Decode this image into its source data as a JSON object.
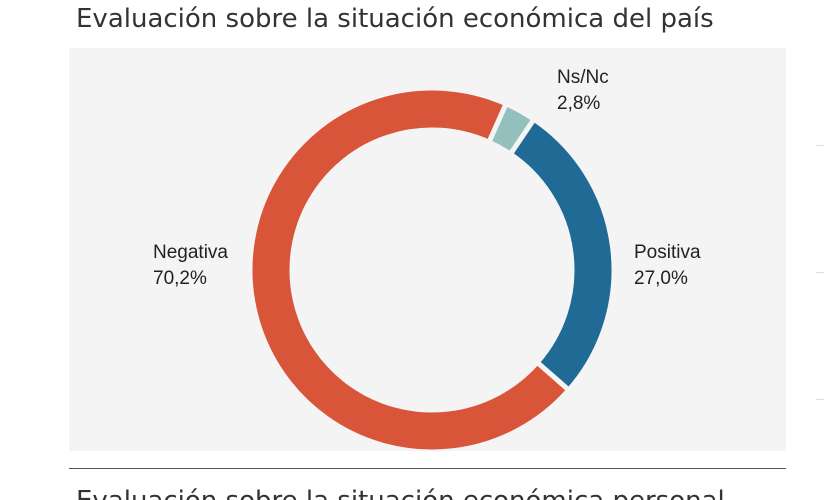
{
  "page": {
    "title": "Evaluación sobre la situación económica del país",
    "next_heading": "Evaluación sobre la situación económica personal"
  },
  "chart_data": {
    "type": "pie",
    "donut": true,
    "title": "",
    "slices": [
      {
        "label": "Ns/Nc",
        "value_label": "2,8%",
        "value": 2.8,
        "color": "#93bfbd"
      },
      {
        "label": "Positiva",
        "value_label": "27,0%",
        "value": 27.0,
        "color": "#1f6b96"
      },
      {
        "label": "Negativa",
        "value_label": "70,2%",
        "value": 70.2,
        "color": "#d9553a"
      }
    ],
    "legend": "none",
    "label_color": "#222222",
    "background": "#f4f4f4"
  }
}
